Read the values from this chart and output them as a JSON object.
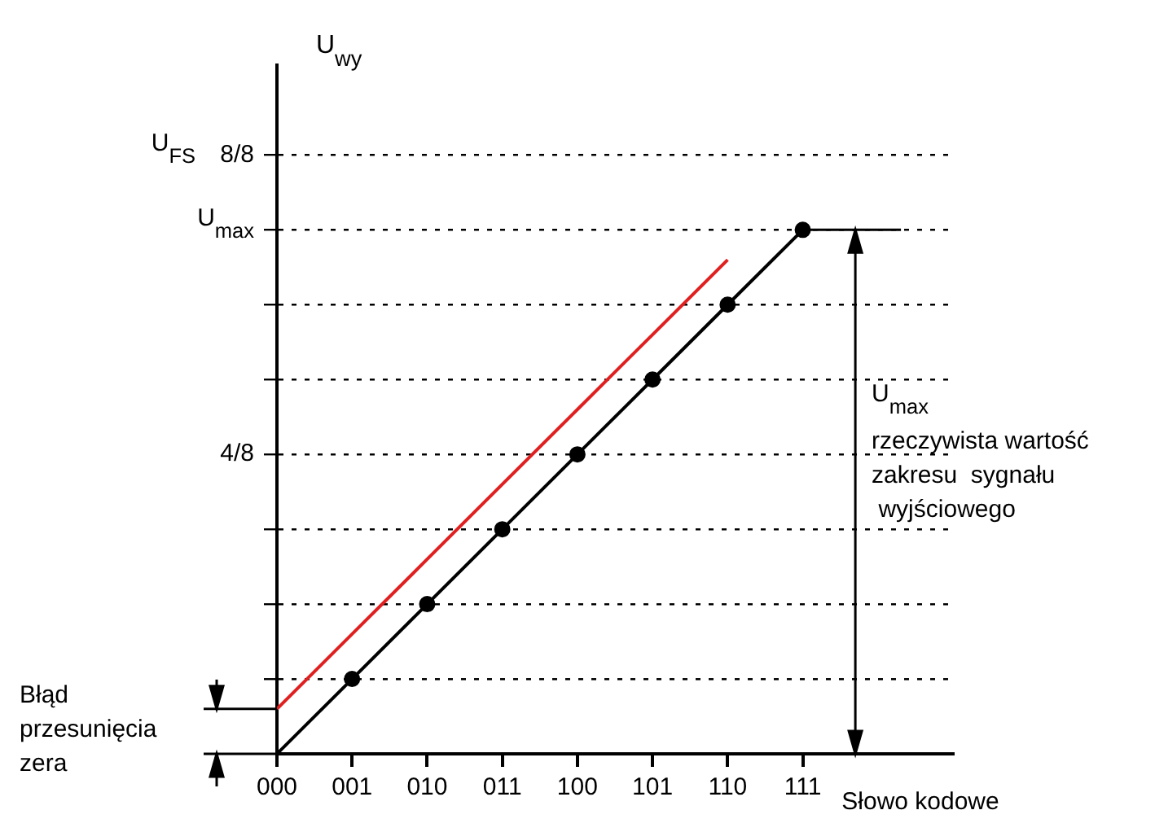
{
  "chart_data": {
    "type": "line",
    "xlabel": "Słowo kodowe",
    "categories": [
      "000",
      "001",
      "010",
      "011",
      "100",
      "101",
      "110",
      "111"
    ],
    "ylim": [
      0,
      1.15
    ],
    "yticks": [
      {
        "value": 0.125,
        "label": null
      },
      {
        "value": 0.25,
        "label": null
      },
      {
        "value": 0.375,
        "label": null
      },
      {
        "value": 0.5,
        "label": "4/8"
      },
      {
        "value": 0.625,
        "label": null
      },
      {
        "value": 0.75,
        "label": null
      },
      {
        "value": 0.875,
        "label": null
      },
      {
        "value": 1,
        "label": "8/8"
      }
    ],
    "series": [
      {
        "color": "#000000",
        "values": [
          0,
          0.125,
          0.25,
          0.375,
          0.5,
          0.625,
          0.75,
          0.875
        ],
        "marker": "circle"
      },
      {
        "color": "#e02020",
        "values": [
          0.075,
          0.2,
          0.325,
          0.45,
          0.575,
          0.7,
          0.825,
          null
        ],
        "marker": "none"
      }
    ],
    "grid": "y",
    "line_style": "solid",
    "legend": false,
    "annotations": [
      "U$_{max}$\nrzeczywista wartość\nzakresu  sygnału\n wyjściowego",
      "Błąd\nprzesunięcia\nzera",
      "U$_{wy}$",
      "U$_{FS}$",
      "U$_{max}$"
    ]
  }
}
